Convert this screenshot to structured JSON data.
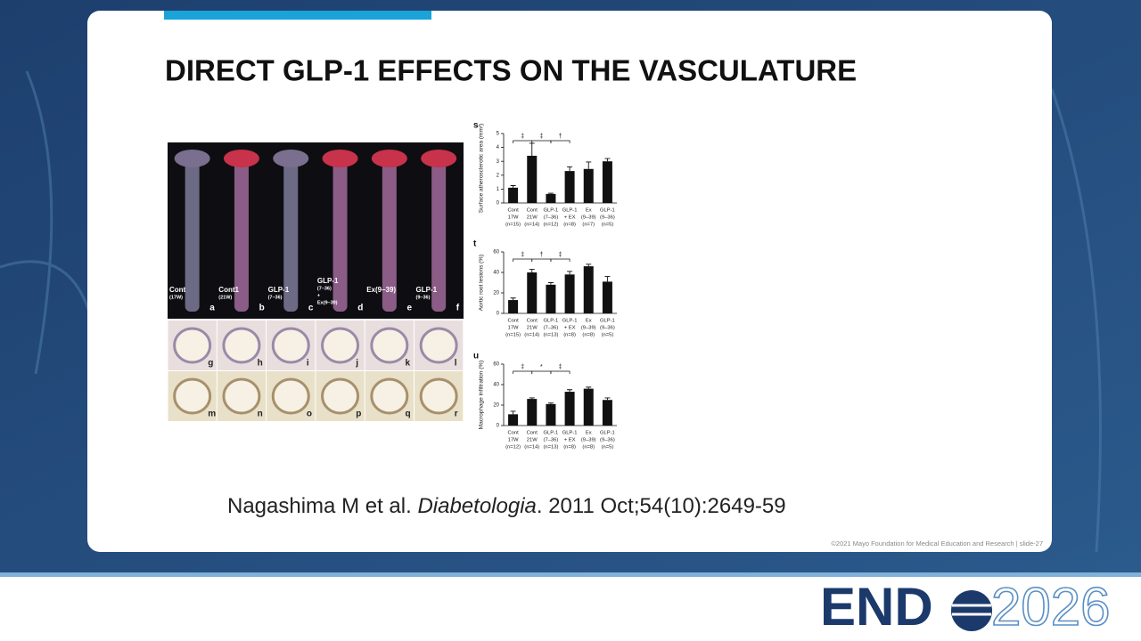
{
  "slide": {
    "title": "DIRECT GLP-1 EFFECTS ON THE VASCULATURE",
    "citation": {
      "authors": "Nagashima M et al.",
      "journal": "Diabetologia",
      "details": ". 2011 Oct;54(10):2649-59"
    },
    "footer": "©2021 Mayo Foundation for Medical Education and Research  |  slide-27",
    "logo": {
      "word": "END",
      "year": "2026"
    },
    "figure": {
      "photo_labels": [
        [
          "Cont",
          "(17W)"
        ],
        [
          "Cont1",
          "(21W)"
        ],
        [
          "GLP-1",
          "(7–36)"
        ],
        [
          "GLP-1",
          "(7–36)",
          "+",
          "Ex(9–39)"
        ],
        [
          "Ex(9–39)"
        ],
        [
          "GLP-1",
          "(9–36)"
        ]
      ],
      "panel_letters": [
        "a",
        "b",
        "c",
        "d",
        "e",
        "f",
        "g",
        "h",
        "i",
        "j",
        "k",
        "l",
        "m",
        "n",
        "o",
        "p",
        "q",
        "r"
      ]
    }
  },
  "chart_data": [
    {
      "type": "bar",
      "panel": "s",
      "ylabel": "Surface atherosclerotic area (mm²)",
      "color": "#111111",
      "categories": [
        [
          "Cont",
          "17W",
          "(n=15)"
        ],
        [
          "Cont",
          "21W",
          "(n=14)"
        ],
        [
          "GLP-1",
          "(7–36)",
          "(n=12)"
        ],
        [
          "GLP-1",
          "+ EX",
          "(n=8)"
        ],
        [
          "Ex",
          "(9–39)",
          "(n=7)"
        ],
        [
          "GLP-1",
          "(9–36)",
          "(n=5)"
        ]
      ],
      "values": [
        1.1,
        3.4,
        0.65,
        2.3,
        2.45,
        3.0
      ],
      "errors": [
        0.15,
        0.9,
        0.05,
        0.3,
        0.5,
        0.2
      ],
      "annotations": [
        "‡",
        "‡",
        "†"
      ],
      "ylim": [
        0,
        5
      ],
      "yticks": [
        0,
        1,
        2,
        3,
        4,
        5
      ]
    },
    {
      "type": "bar",
      "panel": "t",
      "ylabel": "Aortic root lesions (%)",
      "color": "#111111",
      "categories": [
        [
          "Cont",
          "17W",
          "(n=15)"
        ],
        [
          "Cont",
          "21W",
          "(n=14)"
        ],
        [
          "GLP-1",
          "(7–36)",
          "(n=13)"
        ],
        [
          "GLP-1",
          "+ EX",
          "(n=8)"
        ],
        [
          "Ex",
          "(9–39)",
          "(n=8)"
        ],
        [
          "GLP-1",
          "(9–36)",
          "(n=5)"
        ]
      ],
      "values": [
        13,
        40,
        28,
        38,
        46,
        31
      ],
      "errors": [
        2,
        3,
        2,
        3,
        2,
        5
      ],
      "annotations": [
        "‡",
        "†",
        "‡"
      ],
      "ylim": [
        0,
        60
      ],
      "yticks": [
        0,
        20,
        40,
        60
      ]
    },
    {
      "type": "bar",
      "panel": "u",
      "ylabel": "Macrophage infiltration (%)",
      "color": "#111111",
      "categories": [
        [
          "Cont",
          "17W",
          "(n=12)"
        ],
        [
          "Cont",
          "21W",
          "(n=14)"
        ],
        [
          "GLP-1",
          "(7–36)",
          "(n=13)"
        ],
        [
          "GLP-1",
          "+ EX",
          "(n=8)"
        ],
        [
          "Ex",
          "(9–39)",
          "(n=8)"
        ],
        [
          "GLP-1",
          "(9–36)",
          "(n=5)"
        ]
      ],
      "values": [
        11,
        26,
        21,
        33,
        36,
        25
      ],
      "errors": [
        3,
        1,
        1,
        2,
        1.5,
        2
      ],
      "annotations": [
        "‡",
        "*",
        "‡"
      ],
      "ylim": [
        0,
        60
      ],
      "yticks": [
        0,
        20,
        40,
        60
      ]
    }
  ]
}
